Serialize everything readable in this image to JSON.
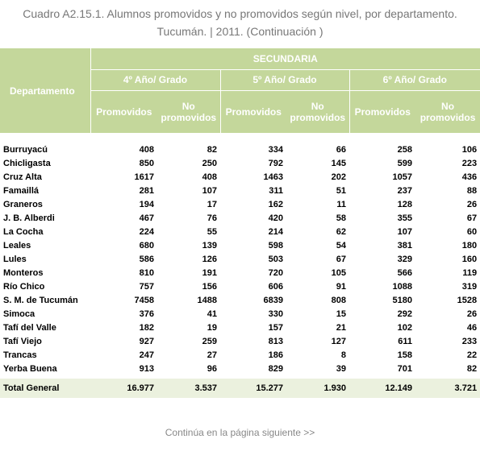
{
  "title": {
    "line1": "Cuadro A2.15.1. Alumnos promovidos y no promovidos según nivel, por departamento.",
    "line2": "Tucumán. | 2011. (Continuación )"
  },
  "table": {
    "header": {
      "department": "Departamento",
      "level": "SECUNDARIA",
      "grades": [
        {
          "label": "4º Año/ Grado",
          "cols": [
            "Promovidos",
            "No promovidos"
          ]
        },
        {
          "label": "5º Año/ Grado",
          "cols": [
            "Promovidos",
            "No promovidos"
          ]
        },
        {
          "label": "6º Año/ Grado",
          "cols": [
            "Promovidos",
            "No promovidos"
          ]
        }
      ]
    },
    "rows": [
      [
        "Burruyacú",
        "408",
        "82",
        "334",
        "66",
        "258",
        "106"
      ],
      [
        "Chicligasta",
        "850",
        "250",
        "792",
        "145",
        "599",
        "223"
      ],
      [
        "Cruz Alta",
        "1617",
        "408",
        "1463",
        "202",
        "1057",
        "436"
      ],
      [
        "Famaillá",
        "281",
        "107",
        "311",
        "51",
        "237",
        "88"
      ],
      [
        "Graneros",
        "194",
        "17",
        "162",
        "11",
        "128",
        "26"
      ],
      [
        "J. B. Alberdi",
        "467",
        "76",
        "420",
        "58",
        "355",
        "67"
      ],
      [
        "La Cocha",
        "224",
        "55",
        "214",
        "62",
        "107",
        "60"
      ],
      [
        "Leales",
        "680",
        "139",
        "598",
        "54",
        "381",
        "180"
      ],
      [
        "Lules",
        "586",
        "126",
        "503",
        "67",
        "329",
        "160"
      ],
      [
        "Monteros",
        "810",
        "191",
        "720",
        "105",
        "566",
        "119"
      ],
      [
        "Río Chico",
        "757",
        "156",
        "606",
        "91",
        "1088",
        "319"
      ],
      [
        "S. M. de Tucumán",
        "7458",
        "1488",
        "6839",
        "808",
        "5180",
        "1528"
      ],
      [
        "Simoca",
        "376",
        "41",
        "330",
        "15",
        "292",
        "26"
      ],
      [
        "Tafí del Valle",
        "182",
        "19",
        "157",
        "21",
        "102",
        "46"
      ],
      [
        "Tafí Viejo",
        "927",
        "259",
        "813",
        "127",
        "611",
        "233"
      ],
      [
        "Trancas",
        "247",
        "27",
        "186",
        "8",
        "158",
        "22"
      ],
      [
        "Yerba Buena",
        "913",
        "96",
        "829",
        "39",
        "701",
        "82"
      ]
    ],
    "total": [
      "Total General",
      "16.977",
      "3.537",
      "15.277",
      "1.930",
      "12.149",
      "3.721"
    ]
  },
  "footer": "Continúa en la página siguiente >>"
}
